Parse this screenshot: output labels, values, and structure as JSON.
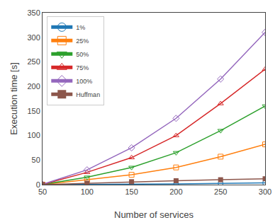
{
  "chart_data": {
    "type": "line",
    "x": [
      50,
      100,
      150,
      200,
      250,
      300
    ],
    "series": [
      {
        "name": "1%",
        "values": [
          0.02,
          0.3,
          0.8,
          1.5,
          2.5,
          3.5
        ],
        "marker": "circle-open"
      },
      {
        "name": "25%",
        "values": [
          0.1,
          10,
          20,
          35,
          57,
          82
        ],
        "marker": "square-open"
      },
      {
        "name": "50%",
        "values": [
          0.2,
          15,
          35,
          65,
          110,
          160
        ],
        "marker": "triangle-down-open"
      },
      {
        "name": "75%",
        "values": [
          0.3,
          25,
          55,
          100,
          165,
          235
        ],
        "marker": "triangle-up-open"
      },
      {
        "name": "100%",
        "values": [
          0.5,
          30,
          75,
          135,
          215,
          310
        ],
        "marker": "diamond-open"
      },
      {
        "name": "Huffman",
        "values": [
          0.05,
          3,
          6,
          8,
          10,
          12
        ],
        "marker": "square"
      }
    ],
    "xlabel": "Number of services",
    "ylabel": "Execution time [s]",
    "xlim": [
      50,
      300
    ],
    "ylim": [
      0,
      350
    ],
    "xticks": [
      50,
      100,
      150,
      200,
      250,
      300
    ],
    "yticks": [
      0,
      50,
      100,
      150,
      200,
      250,
      300,
      350
    ],
    "legend": "upper left",
    "grid": false,
    "line_style": "solid"
  }
}
